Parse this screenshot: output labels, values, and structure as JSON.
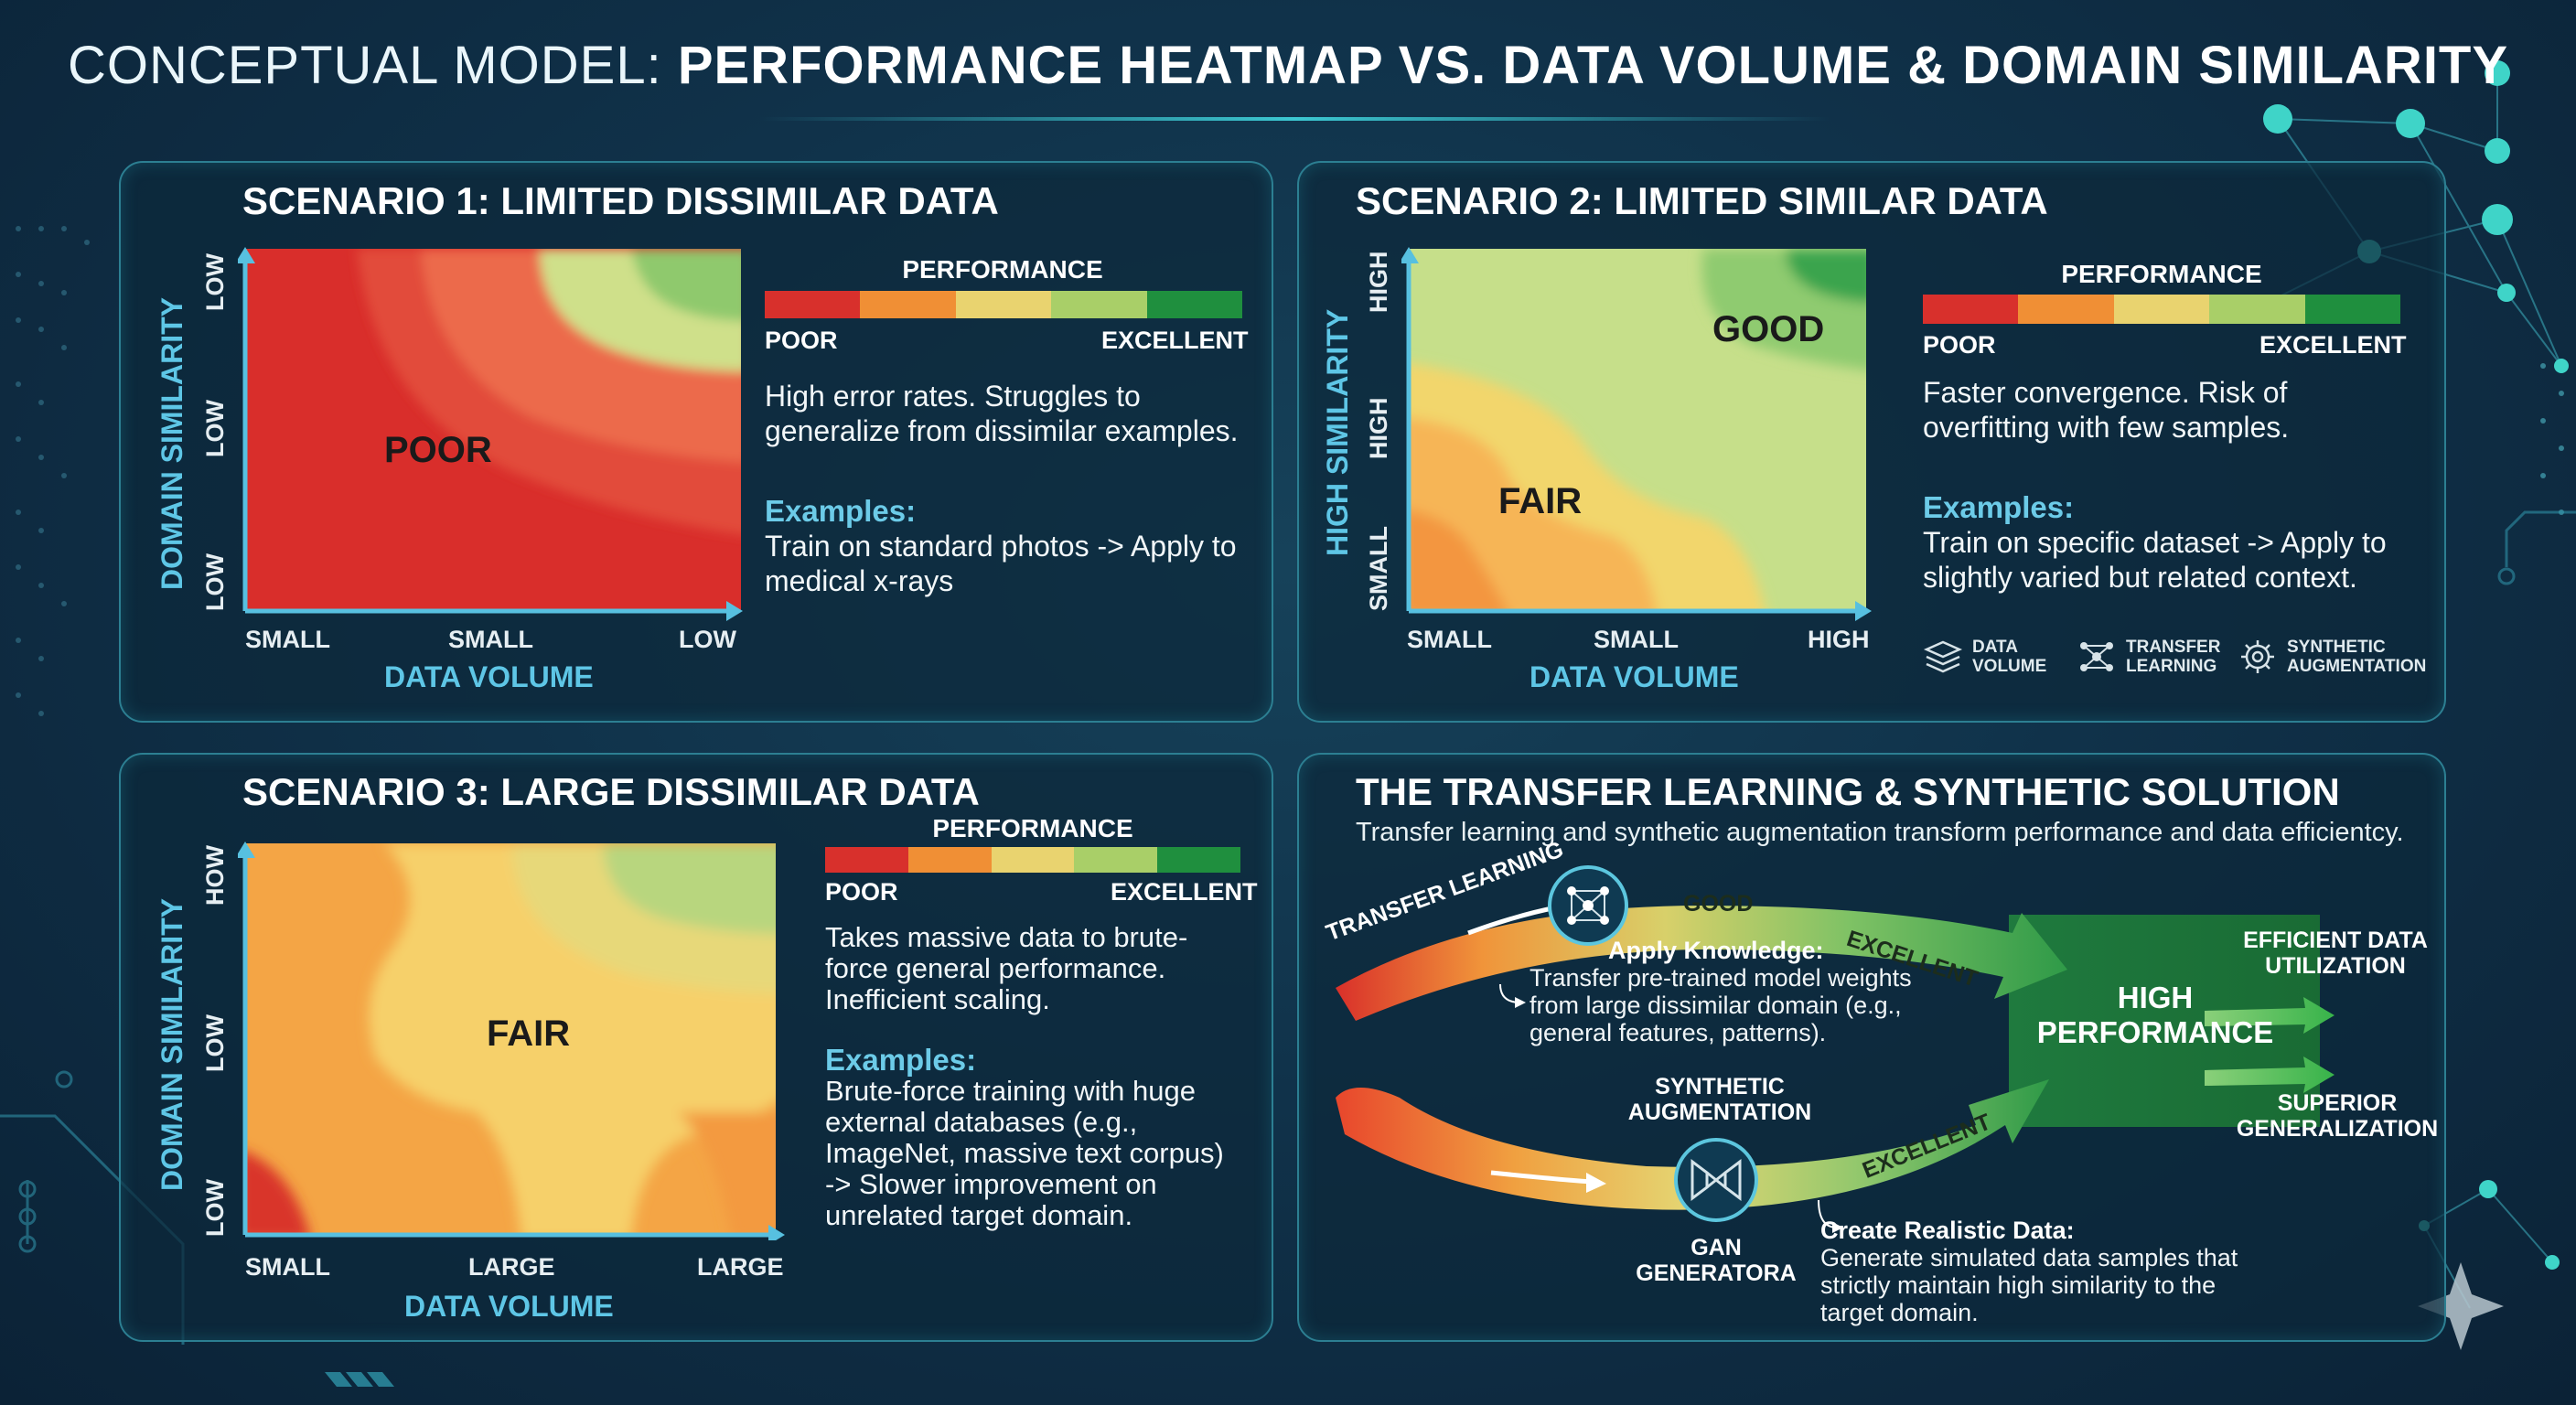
{
  "header": {
    "title_light": "CONCEPTUAL MODEL:",
    "title_bold": "PERFORMANCE HEATMAP VS. DATA VOLUME & DOMAIN SIMILARITY"
  },
  "legend": {
    "title": "PERFORMANCE",
    "poor": "POOR",
    "excellent": "EXCELLENT",
    "colors": [
      "#d8302c",
      "#f08f35",
      "#f3d46a",
      "#a8d06a",
      "#1f8f3e"
    ]
  },
  "scenario1": {
    "title": "SCENARIO 1: LIMITED DISSIMILAR DATA",
    "y_axis": "DOMAIN SIMILARITY",
    "y_ticks": [
      "LOW",
      "LOW",
      "LOW"
    ],
    "x_axis": "DATA VOLUME",
    "x_ticks": [
      "SMALL",
      "SMALL",
      "LOW"
    ],
    "zone": "POOR",
    "description": "High error rates. Struggles to generalize from dissimilar examples.",
    "examples_title": "Examples:",
    "examples_text": "Train on standard photos -> Apply to medical x-rays"
  },
  "scenario2": {
    "title": "SCENARIO 2: LIMITED SIMILAR DATA",
    "y_axis": "HIGH SIMILARITY",
    "y_ticks": [
      "HIGH",
      "HIGH",
      "SMALL"
    ],
    "x_axis": "DATA VOLUME",
    "x_ticks": [
      "SMALL",
      "SMALL",
      "HIGH"
    ],
    "zone_good": "GOOD",
    "zone_fair": "FAIR",
    "description": "Faster convergence. Risk of overfitting with few samples.",
    "examples_title": "Examples:",
    "examples_text": "Train on specific dataset -> Apply to slightly varied but related context.",
    "icons": [
      {
        "name": "stack-icon",
        "label1": "DATA",
        "label2": "VOLUME"
      },
      {
        "name": "network-icon",
        "label1": "TRANSFER",
        "label2": "LEARNING"
      },
      {
        "name": "gear-icon",
        "label1": "SYNTHETIC",
        "label2": "AUGMENTATION"
      }
    ]
  },
  "scenario3": {
    "title": "SCENARIO 3: LARGE DISSIMILAR DATA",
    "y_axis": "DOMAIN SIMILARITY",
    "y_ticks": [
      "HOW",
      "LOW",
      "LOW"
    ],
    "x_axis": "DATA VOLUME",
    "x_ticks": [
      "SMALL",
      "LARGE",
      "LARGE"
    ],
    "zone": "FAIR",
    "description": "Takes massive data to brute-force general performance. Inefficient scaling.",
    "examples_title": "Examples:",
    "examples_text": "Brute-force training with huge external databases (e.g., ImageNet, massive text corpus) -> Slower improvement on unrelated target domain."
  },
  "solution": {
    "title": "THE TRANSFER LEARNING & SYNTHETIC SOLUTION",
    "subtitle": "Transfer learning and synthetic augmentation transform performance and data efficientcy.",
    "arrow1_label": "TRANSFER LEARNING",
    "good": "GOOD",
    "excellent1": "EXCELLENT",
    "excellent2": "EXCELLENT",
    "apply_title": "Apply Knowledge:",
    "apply_text": "Transfer pre-trained model weights from large dissimilar domain (e.g., general features, patterns).",
    "synthetic_label": "SYNTHETIC AUGMENTATION",
    "gan_label": "GAN GENERATORA",
    "create_title": "Create Realistic Data:",
    "create_text": "Generate simulated data samples that strictly maintain high similarity to the target domain.",
    "high_perf": "HIGH PERFORMANCE",
    "efficient": "EFFICIENT DATA UTILIZATION",
    "superior": "SUPERIOR GENERALIZATION"
  }
}
